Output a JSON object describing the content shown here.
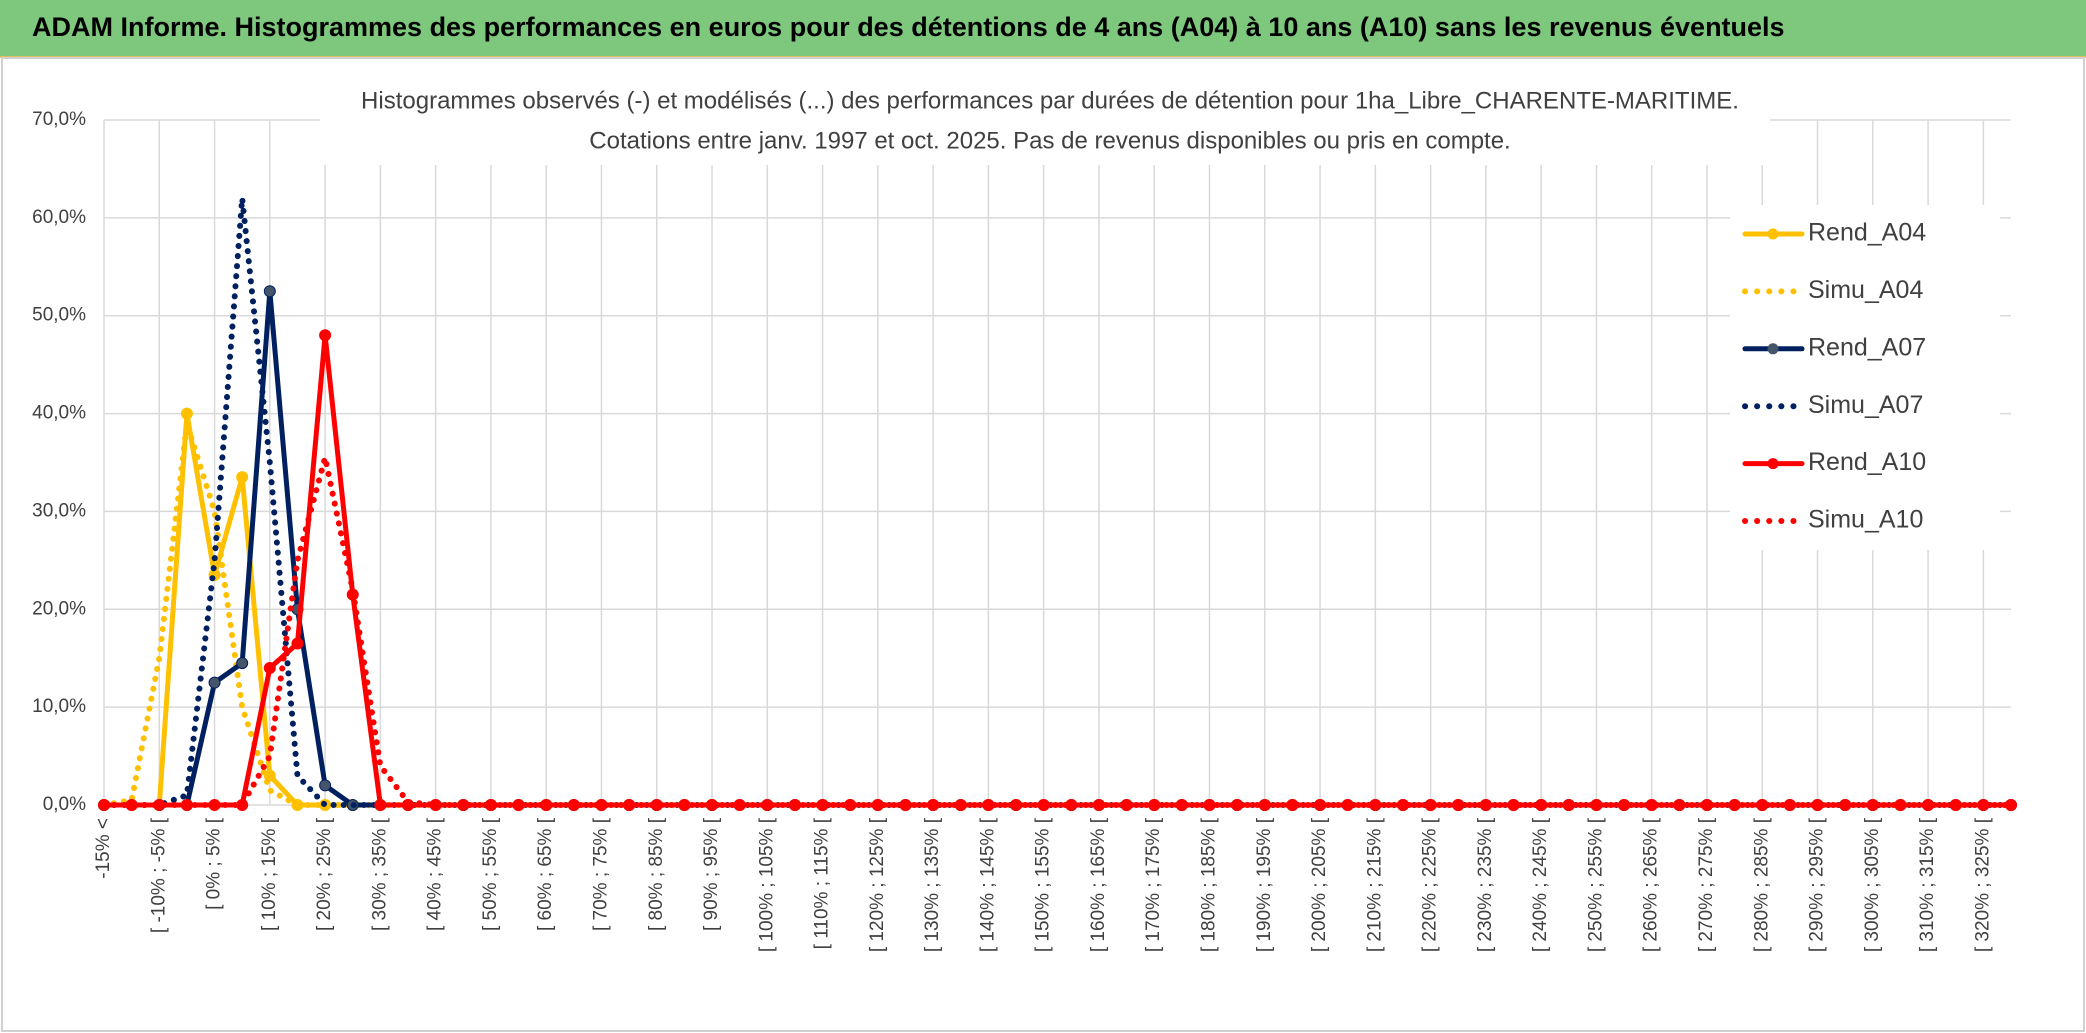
{
  "header": {
    "title": "ADAM Informe. Histogrammes des performances en euros pour des détentions de 4 ans (A04) à 10 ans (A10) sans les revenus éventuels"
  },
  "chart_data": {
    "type": "line",
    "title": [
      "Histogrammes observés (-) et modélisés (...) des performances par durées de détention pour 1ha_Libre_CHARENTE-MARITIME.",
      "Cotations entre janv. 1997 et oct. 2025. Pas de revenus disponibles ou pris en compte."
    ],
    "categories": [
      "-15% <",
      null,
      "[ -10% ; -5% [",
      null,
      "[ 0% ; 5% [",
      null,
      "[ 10% ; 15% [",
      null,
      "[ 20% ; 25% [",
      null,
      "[ 30% ; 35% [",
      null,
      "[ 40% ; 45% [",
      null,
      "[ 50% ; 55% [",
      null,
      "[ 60% ; 65% [",
      null,
      "[ 70% ; 75% [",
      null,
      "[ 80% ; 85% [",
      null,
      "[ 90% ; 95% [",
      null,
      "[ 100% ; 105% [",
      null,
      "[ 110% ; 115% [",
      null,
      "[ 120% ; 125% [",
      null,
      "[ 130% ; 135% [",
      null,
      "[ 140% ; 145% [",
      null,
      "[ 150% ; 155% [",
      null,
      "[ 160% ; 165% [",
      null,
      "[ 170% ; 175% [",
      null,
      "[ 180% ; 185% [",
      null,
      "[ 190% ; 195% [",
      null,
      "[ 200% ; 205% [",
      null,
      "[ 210% ; 215% [",
      null,
      "[ 220% ; 225% [",
      null,
      "[ 230% ; 235% [",
      null,
      "[ 240% ; 245% [",
      null,
      "[ 250% ; 255% [",
      null,
      "[ 260% ; 265% [",
      null,
      "[ 270% ; 275% [",
      null,
      "[ 280% ; 285% [",
      null,
      "[ 290% ; 295% [",
      null,
      "[ 300% ; 305% [",
      null,
      "[ 310% ; 315% [",
      null,
      "[ 320% ; 325% [",
      null
    ],
    "series": [
      {
        "name": "Rend_A04",
        "color": "#ffc000",
        "dash": false,
        "markers": true,
        "values": [
          0,
          0,
          0,
          40,
          23.5,
          33.5,
          3,
          0,
          0,
          0,
          0,
          0,
          0,
          0,
          0,
          0,
          0,
          0,
          0,
          0,
          0,
          0,
          0,
          0,
          0,
          0,
          0,
          0,
          0,
          0,
          0,
          0,
          0,
          0,
          0,
          0,
          0,
          0,
          0,
          0,
          0,
          0,
          0,
          0,
          0,
          0,
          0,
          0,
          0,
          0,
          0,
          0,
          0,
          0,
          0,
          0,
          0,
          0,
          0,
          0,
          0,
          0,
          0,
          0,
          0,
          0,
          0,
          0,
          0,
          0
        ]
      },
      {
        "name": "Simu_A04",
        "color": "#ffc000",
        "dash": true,
        "markers": false,
        "values": [
          0,
          0.5,
          15,
          39,
          30,
          10,
          1.5,
          0,
          0,
          0,
          0,
          0,
          0,
          0,
          0,
          0,
          0,
          0,
          0,
          0,
          0,
          0,
          0,
          0,
          0,
          0,
          0,
          0,
          0,
          0,
          0,
          0,
          0,
          0,
          0,
          0,
          0,
          0,
          0,
          0,
          0,
          0,
          0,
          0,
          0,
          0,
          0,
          0,
          0,
          0,
          0,
          0,
          0,
          0,
          0,
          0,
          0,
          0,
          0,
          0,
          0,
          0,
          0,
          0,
          0,
          0,
          0,
          0,
          0,
          0
        ]
      },
      {
        "name": "Rend_A07",
        "color": "#002060",
        "dash": false,
        "markers": true,
        "values": [
          0,
          0,
          0,
          0,
          12.5,
          14.5,
          52.5,
          20,
          2,
          0,
          0,
          0,
          0,
          0,
          0,
          0,
          0,
          0,
          0,
          0,
          0,
          0,
          0,
          0,
          0,
          0,
          0,
          0,
          0,
          0,
          0,
          0,
          0,
          0,
          0,
          0,
          0,
          0,
          0,
          0,
          0,
          0,
          0,
          0,
          0,
          0,
          0,
          0,
          0,
          0,
          0,
          0,
          0,
          0,
          0,
          0,
          0,
          0,
          0,
          0,
          0,
          0,
          0,
          0,
          0,
          0,
          0,
          0,
          0,
          0
        ]
      },
      {
        "name": "Simu_A07",
        "color": "#002060",
        "dash": true,
        "markers": false,
        "values": [
          0,
          0,
          0,
          1,
          25,
          62,
          35,
          3,
          0,
          0,
          0,
          0,
          0,
          0,
          0,
          0,
          0,
          0,
          0,
          0,
          0,
          0,
          0,
          0,
          0,
          0,
          0,
          0,
          0,
          0,
          0,
          0,
          0,
          0,
          0,
          0,
          0,
          0,
          0,
          0,
          0,
          0,
          0,
          0,
          0,
          0,
          0,
          0,
          0,
          0,
          0,
          0,
          0,
          0,
          0,
          0,
          0,
          0,
          0,
          0,
          0,
          0,
          0,
          0,
          0,
          0,
          0,
          0,
          0,
          0
        ]
      },
      {
        "name": "Rend_A10",
        "color": "#ff0000",
        "dash": false,
        "markers": true,
        "values": [
          0,
          0,
          0,
          0,
          0,
          0,
          14,
          16.5,
          48,
          21.5,
          0,
          0,
          0,
          0,
          0,
          0,
          0,
          0,
          0,
          0,
          0,
          0,
          0,
          0,
          0,
          0,
          0,
          0,
          0,
          0,
          0,
          0,
          0,
          0,
          0,
          0,
          0,
          0,
          0,
          0,
          0,
          0,
          0,
          0,
          0,
          0,
          0,
          0,
          0,
          0,
          0,
          0,
          0,
          0,
          0,
          0,
          0,
          0,
          0,
          0,
          0,
          0,
          0,
          0,
          0,
          0,
          0,
          0,
          0,
          0
        ]
      },
      {
        "name": "Simu_A10",
        "color": "#ff0000",
        "dash": true,
        "markers": false,
        "values": [
          0,
          0,
          0,
          0,
          0,
          0,
          5,
          25,
          35.5,
          22,
          4,
          0.3,
          0,
          0,
          0,
          0,
          0,
          0,
          0,
          0,
          0,
          0,
          0,
          0,
          0,
          0,
          0,
          0,
          0,
          0,
          0,
          0,
          0,
          0,
          0,
          0,
          0,
          0,
          0,
          0,
          0,
          0,
          0,
          0,
          0,
          0,
          0,
          0,
          0,
          0,
          0,
          0,
          0,
          0,
          0,
          0,
          0,
          0,
          0,
          0,
          0,
          0,
          0,
          0,
          0,
          0,
          0,
          0,
          0,
          0
        ]
      }
    ],
    "ylim": [
      0,
      70
    ],
    "yticks": [
      {
        "value": 0,
        "label": "0,0%"
      },
      {
        "value": 10,
        "label": "10,0%"
      },
      {
        "value": 20,
        "label": "20,0%"
      },
      {
        "value": 30,
        "label": "30,0%"
      },
      {
        "value": 40,
        "label": "40,0%"
      },
      {
        "value": 50,
        "label": "50,0%"
      },
      {
        "value": 60,
        "label": "60,0%"
      },
      {
        "value": 70,
        "label": "70,0%"
      }
    ],
    "grid": true,
    "legend": "right"
  }
}
